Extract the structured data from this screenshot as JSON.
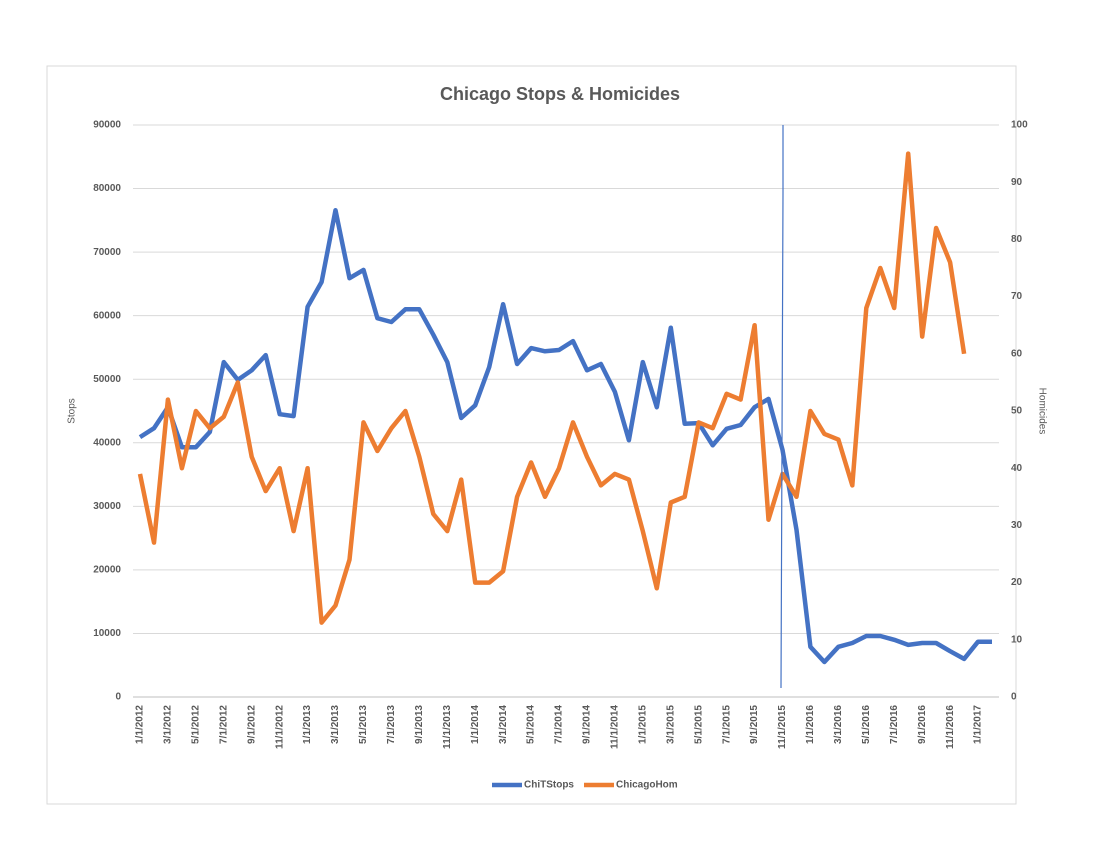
{
  "chart_data": {
    "type": "line",
    "title": "Chicago Stops & Homicides",
    "y_label": "Stops",
    "y2_label": "Homicides",
    "categories": [
      "1/1/2012",
      null,
      "3/1/2012",
      null,
      "5/1/2012",
      null,
      "7/1/2012",
      null,
      "9/1/2012",
      null,
      "11/1/2012",
      null,
      "1/1/2013",
      null,
      "3/1/2013",
      null,
      "5/1/2013",
      null,
      "7/1/2013",
      null,
      "9/1/2013",
      null,
      "11/1/2013",
      null,
      "1/1/2014",
      null,
      "3/1/2014",
      null,
      "5/1/2014",
      null,
      "7/1/2014",
      null,
      "9/1/2014",
      null,
      "11/1/2014",
      null,
      "1/1/2015",
      null,
      "3/1/2015",
      null,
      "5/1/2015",
      null,
      "7/1/2015",
      null,
      "9/1/2015",
      null,
      "11/1/2015",
      null,
      "1/1/2016",
      null,
      "3/1/2016",
      null,
      "5/1/2016",
      null,
      "7/1/2016",
      null,
      "9/1/2016",
      null,
      "11/1/2016",
      null,
      "1/1/2017",
      null
    ],
    "series": [
      {
        "name": "ChiTStops",
        "color": "#4472c4",
        "values": [
          40900,
          42300,
          45600,
          39300,
          39300,
          41700,
          52700,
          49900,
          51400,
          53800,
          44500,
          44200,
          61400,
          65300,
          76600,
          65900,
          67200,
          59600,
          59000,
          61000,
          61000,
          57000,
          52700,
          43900,
          45900,
          51900,
          61800,
          52400,
          54900,
          54400,
          54600,
          56000,
          51400,
          52400,
          48000,
          40400,
          52700,
          45600,
          58100,
          43000,
          43100,
          39600,
          42200,
          42800,
          45600,
          46900,
          38900,
          26300,
          7900,
          5500,
          7900,
          8500,
          9600,
          9600,
          9000,
          8200,
          8500,
          8500,
          7200,
          6000,
          8700,
          8700
        ]
      },
      {
        "name": "ChicagoHom",
        "color": "#ed7d31",
        "axis": "y2",
        "values": [
          39,
          27,
          52,
          40,
          50,
          47,
          49,
          55,
          42,
          36,
          40,
          29,
          40,
          13,
          16,
          24,
          48,
          43,
          47,
          50,
          42,
          32,
          29,
          38,
          20,
          20,
          22,
          35,
          41,
          35,
          40,
          48,
          42,
          37,
          39,
          38,
          29,
          19,
          34,
          35,
          48,
          47,
          53,
          52,
          65,
          31,
          39,
          35,
          50,
          46,
          45,
          37,
          68,
          75,
          68,
          95,
          63,
          82,
          76,
          60,
          null,
          null
        ]
      }
    ],
    "ylim": [
      0,
      90000
    ],
    "yticks": [
      0,
      10000,
      20000,
      30000,
      40000,
      50000,
      60000,
      70000,
      80000,
      90000
    ],
    "y2lim": [
      0,
      100
    ],
    "y2ticks": [
      0,
      10,
      20,
      30,
      40,
      50,
      60,
      70,
      80,
      90,
      100
    ],
    "grid": true,
    "legend": "bottom"
  }
}
